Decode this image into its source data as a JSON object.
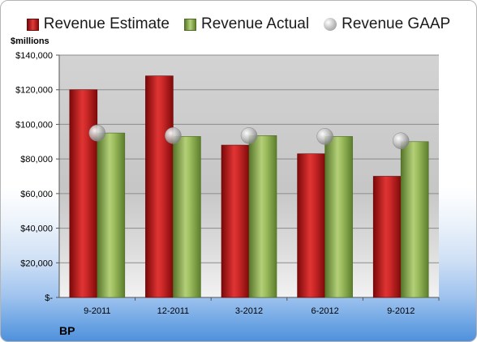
{
  "chart_data": {
    "type": "bar",
    "title": "",
    "units_label": "$millions",
    "company": "BP",
    "categories": [
      "9-2011",
      "12-2011",
      "3-2012",
      "6-2012",
      "9-2012"
    ],
    "series": [
      {
        "name": "Revenue Estimate",
        "kind": "bar",
        "color": "#c81e1e",
        "values": [
          120000,
          128000,
          88000,
          83000,
          70000
        ]
      },
      {
        "name": "Revenue Actual",
        "kind": "bar",
        "color": "#8fb04f",
        "values": [
          95000,
          93000,
          93500,
          93000,
          90000
        ]
      },
      {
        "name": "Revenue GAAP",
        "kind": "marker",
        "color": "#a0a0a0",
        "values": [
          95000,
          93500,
          93500,
          93000,
          90500
        ]
      }
    ],
    "ylim": [
      0,
      140000
    ],
    "yticks": [
      0,
      20000,
      40000,
      60000,
      80000,
      100000,
      120000,
      140000
    ],
    "ytick_labels": [
      "$-",
      "$20,000",
      "$40,000",
      "$60,000",
      "$80,000",
      "$100,000",
      "$120,000",
      "$140,000"
    ],
    "grid": true,
    "legend_position": "top"
  }
}
